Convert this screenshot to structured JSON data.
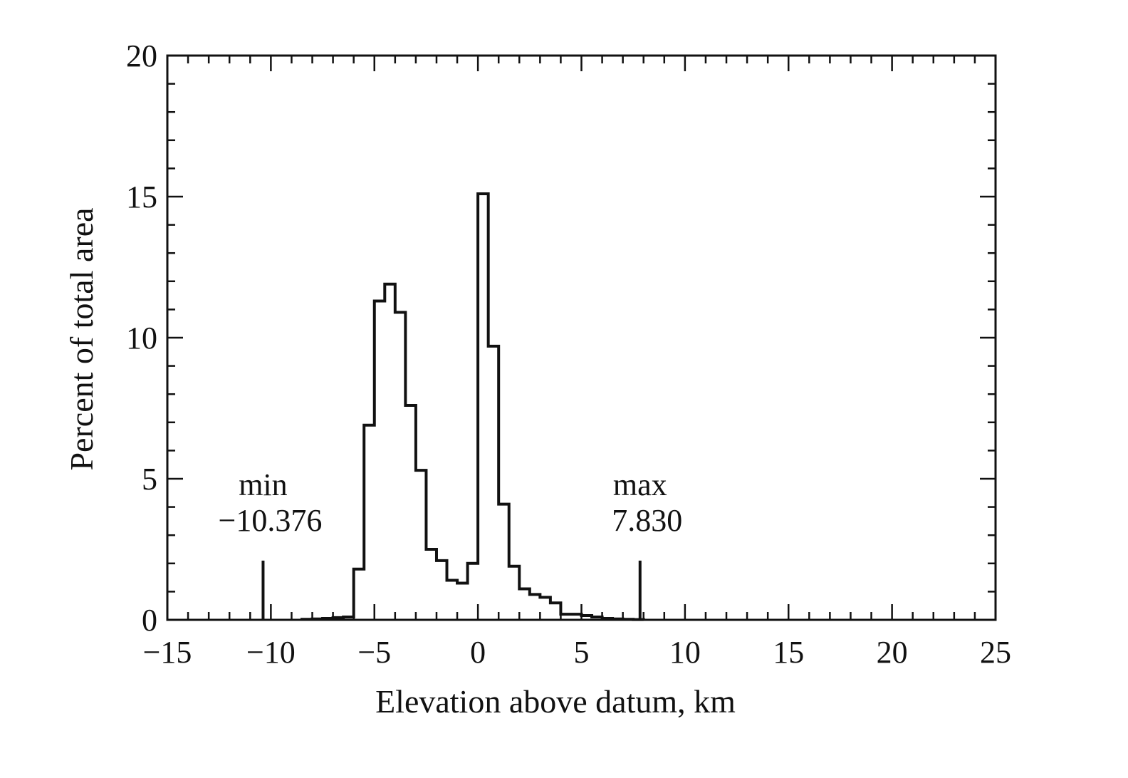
{
  "chart_data": {
    "type": "histogram",
    "title": "",
    "xlabel": "Elevation above datum, km",
    "ylabel": "Percent of total area",
    "xlim": [
      -15,
      25
    ],
    "ylim": [
      0,
      20
    ],
    "xticks": [
      -15,
      -10,
      -5,
      0,
      5,
      10,
      15,
      20,
      25
    ],
    "xtick_labels": [
      "−15",
      "−10",
      "−5",
      "0",
      "5",
      "10",
      "15",
      "20",
      "25"
    ],
    "yticks": [
      0,
      5,
      10,
      15,
      20
    ],
    "ytick_labels": [
      "0",
      "5",
      "10",
      "15",
      "20"
    ],
    "grid": false,
    "legend": "none",
    "bin_width": 0.5,
    "bins_start": [
      -8.5,
      -8,
      -7.5,
      -7,
      -6.5,
      -6,
      -5.5,
      -5,
      -4.5,
      -4,
      -3.5,
      -3,
      -2.5,
      -2,
      -1.5,
      -1,
      -0.5,
      0,
      0.5,
      1,
      1.5,
      2,
      2.5,
      3,
      3.5,
      4,
      4.5,
      5,
      5.5,
      6,
      6.5,
      7,
      7.5
    ],
    "values": [
      0.02,
      0.03,
      0.05,
      0.08,
      0.1,
      1.8,
      6.9,
      11.3,
      11.9,
      10.9,
      7.6,
      5.3,
      2.5,
      2.1,
      1.4,
      1.3,
      2.0,
      15.1,
      9.7,
      4.1,
      1.9,
      1.1,
      0.9,
      0.8,
      0.6,
      0.2,
      0.2,
      0.15,
      0.1,
      0.05,
      0.03,
      0.02,
      0.01
    ],
    "color": "#111111",
    "annotations": [
      {
        "label": "min",
        "value_text": "−10.376",
        "x": -10.376,
        "marker_height": 2.1
      },
      {
        "label": "max",
        "value_text": "7.830",
        "x": 7.83,
        "marker_height": 2.1
      }
    ]
  }
}
